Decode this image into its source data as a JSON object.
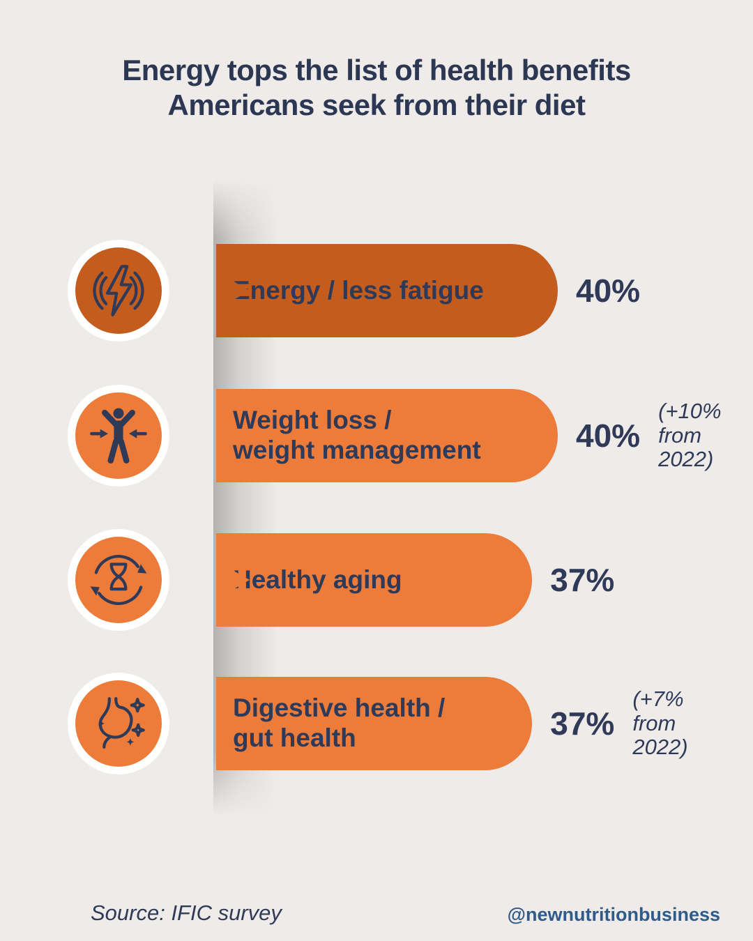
{
  "title": "Energy tops the list of health benefits\nAmericans seek from their diet",
  "source": "Source: IFIC survey",
  "handle": "@newnutritionbusiness",
  "colors": {
    "background": "#EFEBE8",
    "navy_text": "#2E3A58",
    "dark_orange": "#C45C1E",
    "light_orange": "#ED7C3B",
    "handle_blue": "#2F5A8C",
    "badge_ring": "#FFFFFF"
  },
  "rows": [
    {
      "label": "Energy / less fatigue",
      "pct_label": "40%",
      "value": 40,
      "note": "",
      "icon": "energy-icon",
      "bar_color": "#C45C1E"
    },
    {
      "label": "Weight loss /\nweight management",
      "pct_label": "40%",
      "value": 40,
      "note": "(+10%\nfrom\n2022)",
      "icon": "weight-loss-icon",
      "bar_color": "#ED7C3B"
    },
    {
      "label": "Healthy aging",
      "pct_label": "37%",
      "value": 37,
      "note": "",
      "icon": "healthy-aging-icon",
      "bar_color": "#ED7C3B"
    },
    {
      "label": "Digestive health /\ngut health",
      "pct_label": "37%",
      "value": 37,
      "note": "(+7%\nfrom\n2022)",
      "icon": "digestive-health-icon",
      "bar_color": "#ED7C3B"
    }
  ],
  "chart_data": {
    "type": "bar",
    "orientation": "horizontal",
    "title": "Energy tops the list of health benefits Americans seek from their diet",
    "categories": [
      "Energy / less fatigue",
      "Weight loss / weight management",
      "Healthy aging",
      "Digestive health / gut health"
    ],
    "values": [
      40,
      40,
      37,
      37
    ],
    "data_labels": [
      "40%",
      "40% (+10% from 2022)",
      "37%",
      "37% (+7% from 2022)"
    ],
    "change_from_2022": [
      null,
      "+10%",
      null,
      "+7%"
    ],
    "xlim": [
      0,
      40
    ],
    "grid": false,
    "legend": false,
    "source": "IFIC survey"
  }
}
